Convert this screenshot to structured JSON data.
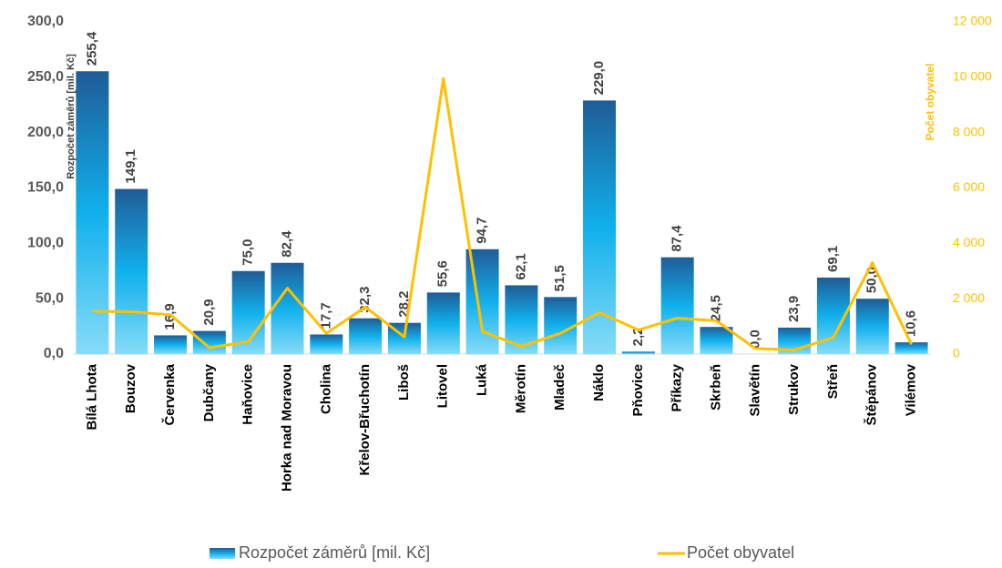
{
  "chart_data": {
    "type": "bar",
    "y_label": "Rozpočet záměrů [mil. Kč]",
    "y2_label": "Počet obyvatel",
    "categories": [
      "Bílá Lhota",
      "Bouzov",
      "Červenka",
      "Dubčany",
      "Haňovice",
      "Horka nad Moravou",
      "Cholina",
      "Křelov-Břuchotín",
      "Liboš",
      "Litovel",
      "Luká",
      "Měrotín",
      "Mladeč",
      "Náklo",
      "Pňovice",
      "Příkazy",
      "Skrbeň",
      "Slavětín",
      "Strukov",
      "Střeň",
      "Štěpánov",
      "Vilémov"
    ],
    "series": [
      {
        "name": "Rozpočet záměrů [mil. Kč]",
        "type": "bar",
        "color": "#10b0ec",
        "values": [
          255.4,
          149.1,
          16.9,
          20.9,
          75.0,
          82.4,
          17.7,
          32.3,
          28.2,
          55.6,
          94.7,
          62.1,
          51.5,
          229.0,
          2.2,
          87.4,
          24.5,
          0.0,
          23.9,
          69.1,
          50.0,
          10.6
        ],
        "value_labels": [
          "255,4",
          "149,1",
          "16,9",
          "20,9",
          "75,0",
          "82,4",
          "17,7",
          "32,3",
          "28,2",
          "55,6",
          "94,7",
          "62,1",
          "51,5",
          "229,0",
          "2,2",
          "87,4",
          "24,5",
          "0,0",
          "23,9",
          "69,1",
          "50,0",
          "10,6"
        ]
      },
      {
        "name": "Počet obyvatel",
        "type": "line",
        "axis": "y2",
        "color": "#ffc000",
        "values": [
          1550,
          1530,
          1420,
          230,
          450,
          2380,
          750,
          1700,
          620,
          9950,
          820,
          280,
          750,
          1500,
          870,
          1300,
          1200,
          200,
          150,
          600,
          3300,
          350
        ]
      }
    ],
    "ylim": [
      0,
      300
    ],
    "yticks": [
      {
        "value": 0,
        "label": "0,0"
      },
      {
        "value": 50,
        "label": "50,0"
      },
      {
        "value": 100,
        "label": "100,0"
      },
      {
        "value": 150,
        "label": "150,0"
      },
      {
        "value": 200,
        "label": "200,0"
      },
      {
        "value": 250,
        "label": "250,0"
      },
      {
        "value": 300,
        "label": "300,0"
      }
    ],
    "y2lim": [
      0,
      12000
    ],
    "y2ticks": [
      0,
      {
        "value": 2000,
        "label": "2 000"
      },
      {
        "value": 4000,
        "label": "4 000"
      },
      {
        "value": 6000,
        "label": "6 000"
      },
      {
        "value": 8000,
        "label": "8 000"
      },
      {
        "value": 10000,
        "label": "10 000"
      },
      {
        "value": 12000,
        "label": "12 000"
      }
    ],
    "grid": false,
    "legend": "bottom"
  }
}
